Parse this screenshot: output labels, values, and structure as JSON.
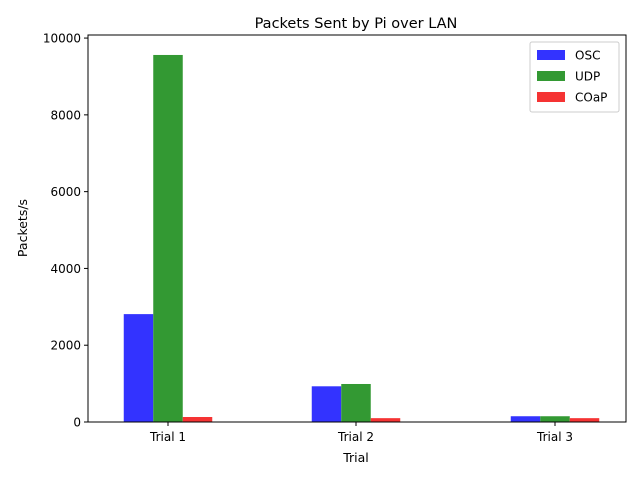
{
  "chart_data": {
    "type": "bar",
    "title": "Packets Sent by Pi over LAN",
    "xlabel": "Trial",
    "ylabel": "Packets/s",
    "categories": [
      "Trial 1",
      "Trial 2",
      "Trial 3"
    ],
    "series": [
      {
        "name": "OSC",
        "color": "#3333ff",
        "values": [
          2810,
          930,
          150
        ]
      },
      {
        "name": "UDP",
        "color": "#339933",
        "values": [
          9560,
          990,
          150
        ]
      },
      {
        "name": "COaP",
        "color": "#f53333",
        "values": [
          130,
          100,
          100
        ]
      }
    ],
    "ylim": [
      0,
      10080
    ],
    "yticks": [
      0,
      2000,
      4000,
      6000,
      8000,
      10000
    ],
    "grid": false,
    "legend_position": "top-right"
  }
}
